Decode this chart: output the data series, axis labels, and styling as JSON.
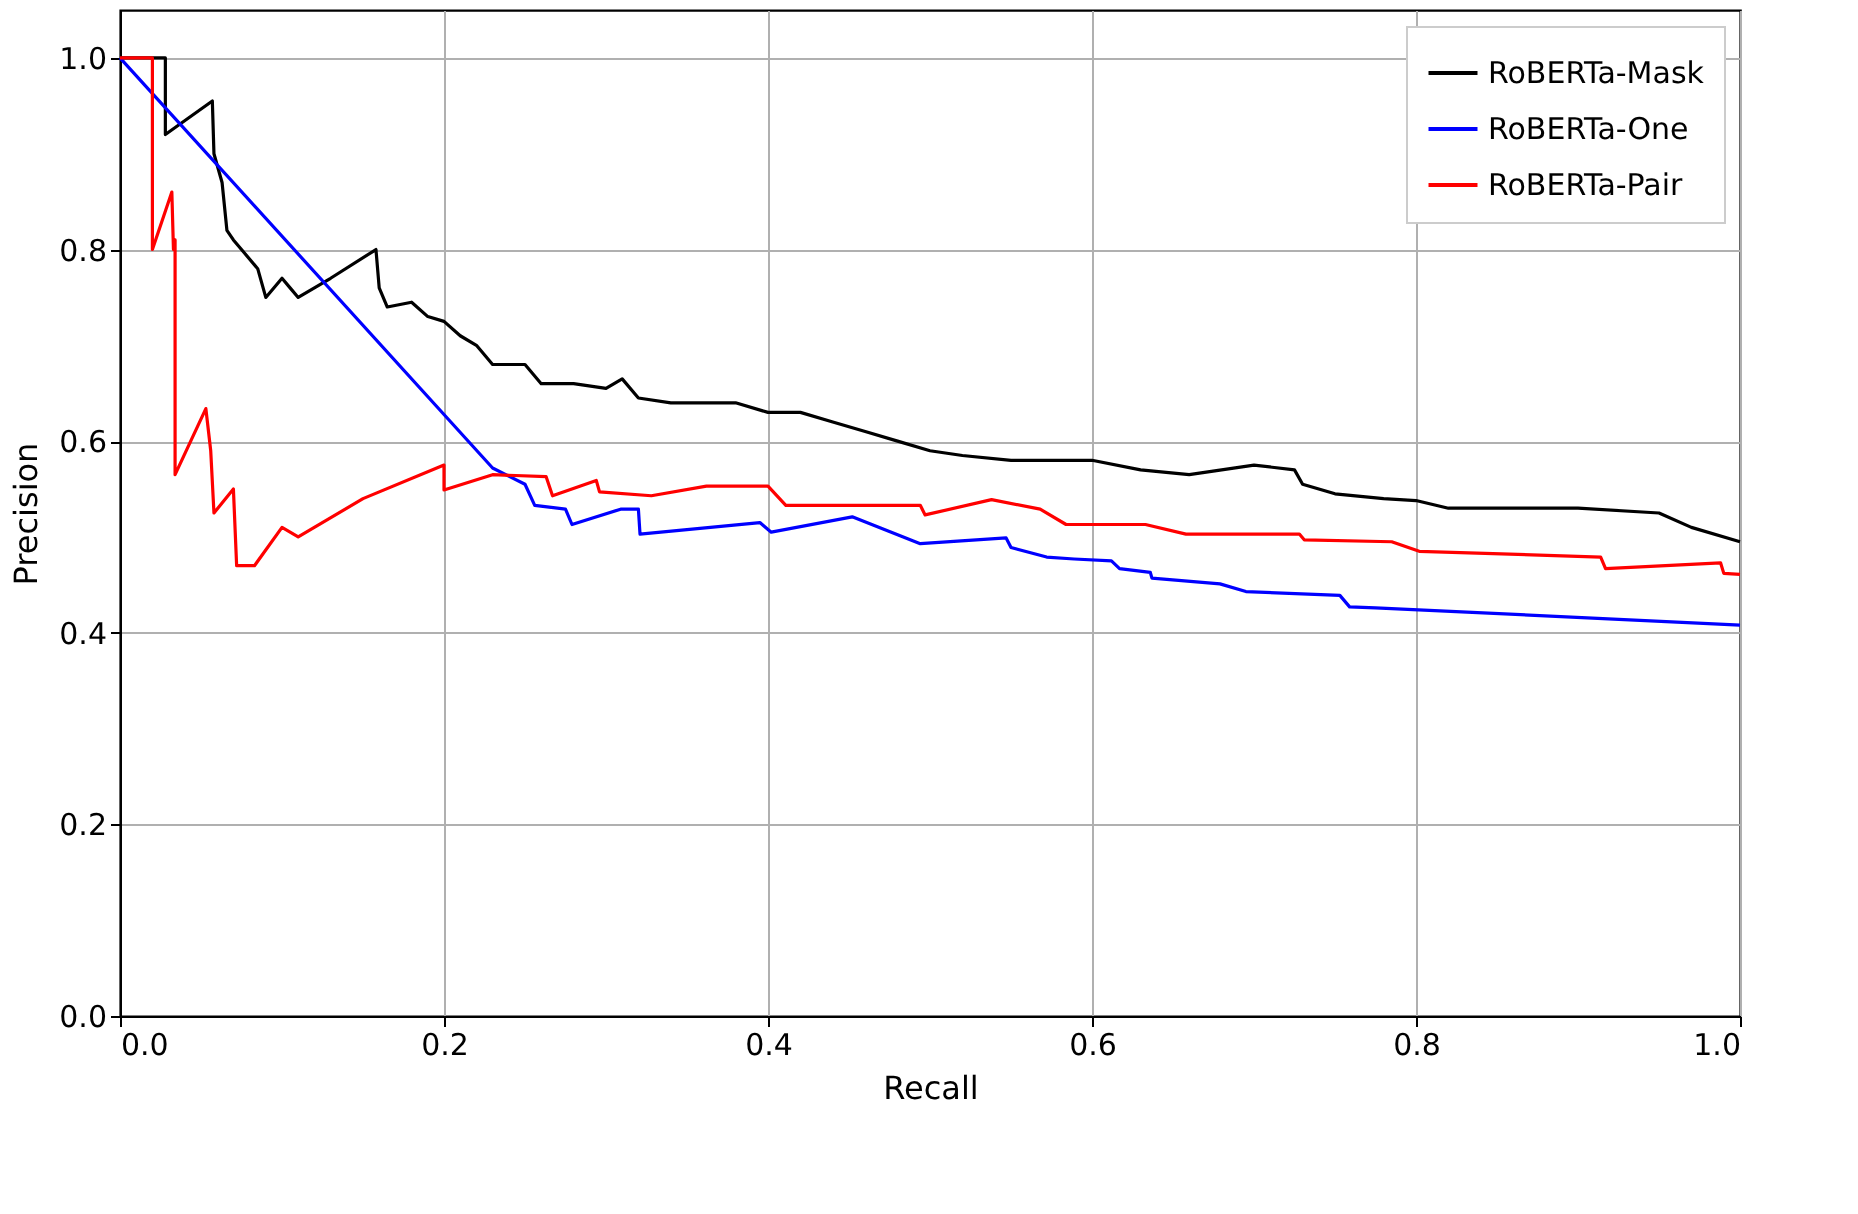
{
  "chart_data": {
    "type": "line",
    "xlabel": "Recall",
    "ylabel": "Precision",
    "xlim": [
      0,
      1
    ],
    "ylim": [
      0,
      1.05
    ],
    "xticks": [
      {
        "value": 0,
        "label": "0.0"
      },
      0.2,
      0.4,
      0.6,
      0.8,
      {
        "value": 1,
        "label": "1.0"
      }
    ],
    "yticks": [
      {
        "value": 0,
        "label": "0.0"
      },
      0.2,
      0.4,
      0.6,
      0.8,
      {
        "value": 1,
        "label": "1.0"
      }
    ],
    "grid": true,
    "legend": "top right",
    "line_style": "solid",
    "marker": "none",
    "series": [
      {
        "name": "RoBERTa-Mask",
        "color": "#000000",
        "x": [
          0,
          0.028,
          0.028,
          0.057,
          0.058,
          0.063,
          0.066,
          0.07,
          0.075,
          0.085,
          0.09,
          0.1,
          0.105,
          0.11,
          0.13,
          0.158,
          0.16,
          0.165,
          0.18,
          0.19,
          0.2,
          0.21,
          0.22,
          0.23,
          0.25,
          0.26,
          0.28,
          0.3,
          0.31,
          0.32,
          0.34,
          0.36,
          0.38,
          0.4,
          0.42,
          0.44,
          0.46,
          0.48,
          0.5,
          0.52,
          0.55,
          0.58,
          0.6,
          0.63,
          0.66,
          0.7,
          0.725,
          0.73,
          0.75,
          0.78,
          0.8,
          0.82,
          0.9,
          0.95,
          0.97,
          1.0
        ],
        "values": [
          1.0,
          1.0,
          0.92,
          0.955,
          0.9,
          0.87,
          0.82,
          0.81,
          0.8,
          0.78,
          0.75,
          0.77,
          0.76,
          0.75,
          0.77,
          0.8,
          0.76,
          0.74,
          0.745,
          0.73,
          0.725,
          0.71,
          0.7,
          0.68,
          0.68,
          0.66,
          0.66,
          0.655,
          0.665,
          0.645,
          0.64,
          0.64,
          0.64,
          0.63,
          0.63,
          0.62,
          0.61,
          0.6,
          0.59,
          0.585,
          0.58,
          0.58,
          0.58,
          0.57,
          0.565,
          0.575,
          0.57,
          0.555,
          0.545,
          0.54,
          0.538,
          0.53,
          0.53,
          0.525,
          0.51,
          0.495
        ]
      },
      {
        "name": "RoBERTa-One",
        "color": "#0000ff",
        "x": [
          0,
          0.23,
          0.25,
          0.256,
          0.275,
          0.279,
          0.309,
          0.32,
          0.321,
          0.395,
          0.402,
          0.452,
          0.494,
          0.547,
          0.55,
          0.572,
          0.589,
          0.612,
          0.617,
          0.636,
          0.637,
          0.679,
          0.695,
          0.753,
          0.759,
          0.775,
          1.0
        ],
        "values": [
          1.0,
          0.572,
          0.555,
          0.533,
          0.529,
          0.513,
          0.529,
          0.529,
          0.503,
          0.515,
          0.505,
          0.521,
          0.493,
          0.499,
          0.489,
          0.479,
          0.477,
          0.475,
          0.467,
          0.463,
          0.457,
          0.451,
          0.443,
          0.439,
          0.427,
          0.426,
          0.408
        ]
      },
      {
        "name": "RoBERTa-Pair",
        "color": "#ff0000",
        "x": [
          0,
          0.02,
          0.02,
          0.032,
          0.033,
          0.034,
          0.034,
          0.053,
          0.056,
          0.058,
          0.07,
          0.072,
          0.083,
          0.1,
          0.11,
          0.15,
          0.2,
          0.2,
          0.23,
          0.263,
          0.267,
          0.294,
          0.296,
          0.328,
          0.362,
          0.4,
          0.411,
          0.494,
          0.497,
          0.538,
          0.568,
          0.584,
          0.633,
          0.658,
          0.728,
          0.731,
          0.785,
          0.802,
          0.914,
          0.917,
          0.988,
          0.99,
          1.0
        ],
        "values": [
          1.0,
          1.0,
          0.8,
          0.86,
          0.8,
          0.81,
          0.565,
          0.634,
          0.59,
          0.525,
          0.55,
          0.47,
          0.47,
          0.51,
          0.5,
          0.54,
          0.575,
          0.549,
          0.565,
          0.563,
          0.543,
          0.559,
          0.547,
          0.543,
          0.553,
          0.553,
          0.533,
          0.533,
          0.523,
          0.539,
          0.529,
          0.513,
          0.513,
          0.503,
          0.503,
          0.497,
          0.495,
          0.485,
          0.479,
          0.467,
          0.473,
          0.462,
          0.461
        ]
      }
    ]
  }
}
